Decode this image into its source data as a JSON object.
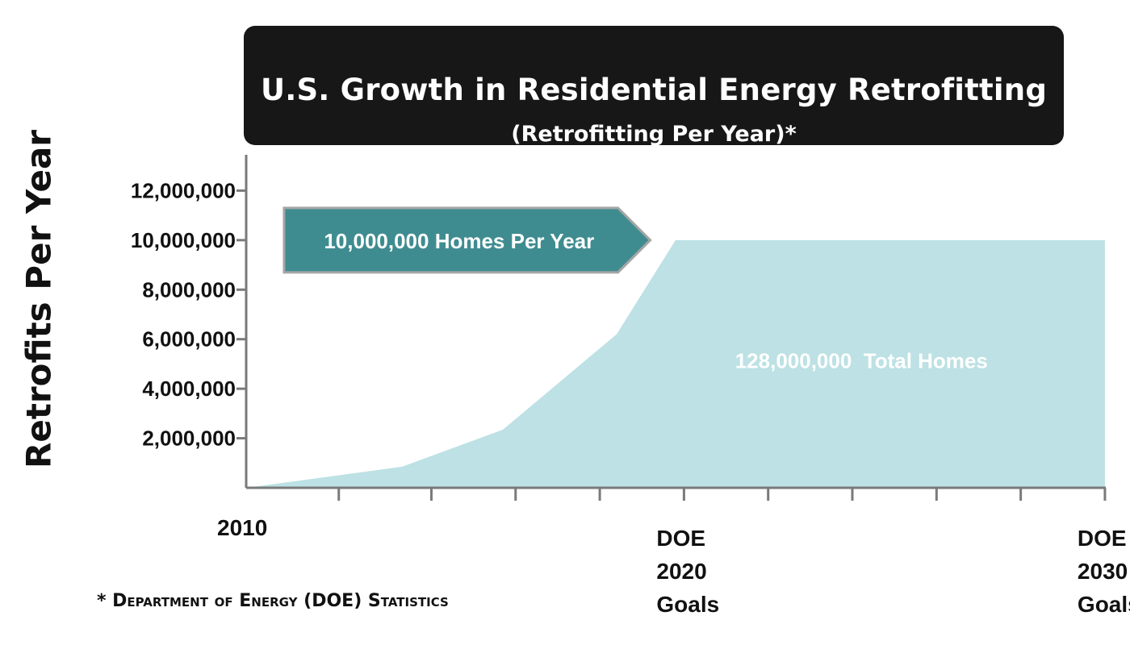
{
  "chart_data": {
    "type": "area",
    "title": "U.S. Growth in Residential Energy Retrofitting",
    "subtitle": "(Retrofitting Per Year)*",
    "ylabel": "Retrofits Per Year",
    "xlabel": "",
    "ylim": [
      0,
      14000000
    ],
    "xlim": [
      2010,
      2030.9
    ],
    "yticks": [
      2000000,
      4000000,
      6000000,
      8000000,
      10000000,
      12000000
    ],
    "ytick_labels": [
      "2,000,000",
      "4,000,000",
      "6,000,000",
      "8,000,000",
      "10,000,000",
      "12,000,000"
    ],
    "xticks": [
      2010,
      2012.2,
      2014.4,
      2016.4,
      2018.4,
      2020.4,
      2022.4,
      2024.4,
      2026.4,
      2028.4,
      2030.4
    ],
    "xtick_labels": [
      {
        "x": 2010,
        "lines": [
          "2010"
        ]
      },
      {
        "x": 2020.4,
        "lines": [
          "DOE",
          "2020",
          "Goals"
        ]
      },
      {
        "x": 2030.4,
        "lines": [
          "DOE",
          "2030",
          "Goals"
        ]
      }
    ],
    "x": [
      2010,
      2013.7,
      2016.1,
      2018.8,
      2020.2,
      2030.4
    ],
    "y": [
      0,
      850000,
      2350000,
      6200000,
      10000000,
      10000000
    ],
    "area_color": "#bde1e4",
    "axis_color": "#7a7a7a",
    "annotations": [
      {
        "text": "10,000,000 Homes Per Year",
        "style": "arrow",
        "x_start": 2010.9,
        "x_end": 2019.6,
        "y": 10000000,
        "fill": "#3f8c90",
        "text_color": "#ffffff"
      },
      {
        "text": "128,000,000  Total Homes",
        "x": 2025,
        "y": 5100000,
        "text_color": "#ffffff"
      }
    ],
    "grid": false,
    "legend": "none"
  },
  "footnote": "* Department of Energy (DOE) Statistics"
}
